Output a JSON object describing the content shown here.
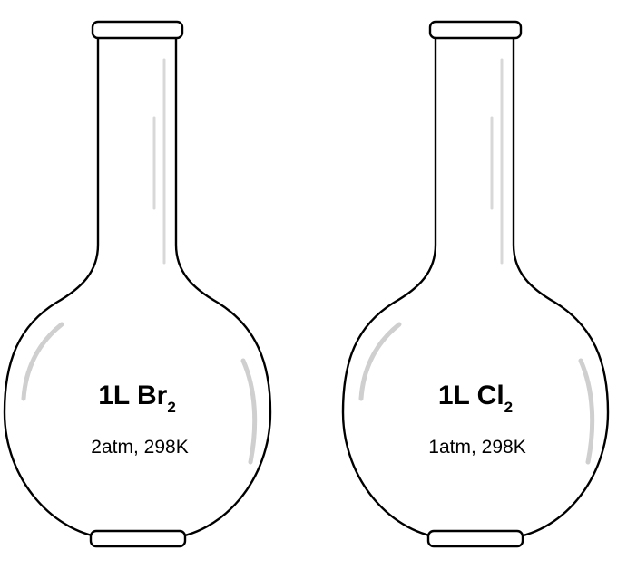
{
  "flasks": [
    {
      "volume_formula": "1L Br",
      "subscript": "2",
      "conditions": "2atm, 298K"
    },
    {
      "volume_formula": "1L Cl",
      "subscript": "2",
      "conditions": "1atm, 298K"
    }
  ],
  "colors": {
    "outline": "#000000",
    "highlight": "#cfcfcf",
    "background": "#ffffff"
  }
}
